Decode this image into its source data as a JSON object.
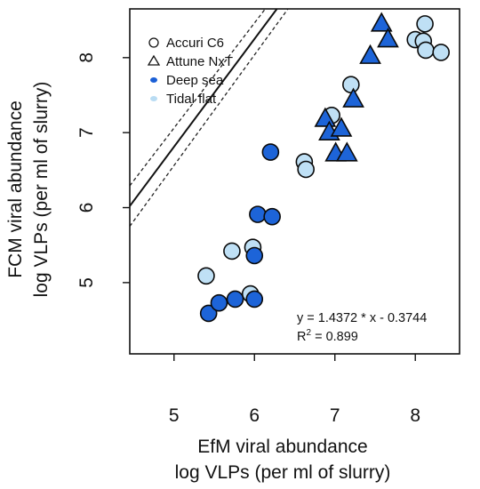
{
  "chart_data": {
    "type": "scatter",
    "xlabel_lines": [
      "EfM viral abundance",
      "log VLPs (per ml of slurry)"
    ],
    "ylabel_lines": [
      "FCM viral abundance",
      "log VLPs (per ml of slurry)"
    ],
    "xlim": [
      4.45,
      8.55
    ],
    "ylim": [
      4.05,
      8.65
    ],
    "xticks": [
      5,
      6,
      7,
      8
    ],
    "yticks": [
      5,
      6,
      7,
      8
    ],
    "grid": false,
    "legend": {
      "placement": "top-left",
      "items": [
        {
          "label": "Accuri C6",
          "symbol": "circle-open"
        },
        {
          "label": "Attune NxT",
          "symbol": "triangle-open"
        },
        {
          "label": "Deep sea",
          "symbol": "dot",
          "color": "#1a5fd6"
        },
        {
          "label": "Tidal flat",
          "symbol": "dot",
          "color": "#b9dcf3"
        }
      ]
    },
    "regression": {
      "slope": 1.4372,
      "intercept": -0.3744,
      "equation_text": "y = 1.4372 * x - 0.3744",
      "r2_prefix": "R",
      "r2_sup": "2",
      "r2_value": " = 0.899"
    },
    "confidence_band": {
      "upper": [
        [
          5.3,
          7.3
        ],
        [
          4.2,
          8.55
        ]
      ],
      "lower": [
        [
          5.3,
          7.78
        ],
        [
          4.2,
          8.55
        ]
      ]
    },
    "colors": {
      "deep_sea": "#1d64d8",
      "tidal_flat": "#bfe0f5",
      "stroke": "#0a0a0a"
    },
    "series": [
      {
        "name": "Accuri C6 – Tidal flat",
        "marker": "circle",
        "group": "tidal_flat",
        "points": [
          [
            5.4,
            5.09
          ],
          [
            5.72,
            5.42
          ],
          [
            5.98,
            5.47
          ],
          [
            5.95,
            4.85
          ],
          [
            6.62,
            6.61
          ],
          [
            6.64,
            6.51
          ],
          [
            6.96,
            7.23
          ],
          [
            7.2,
            7.64
          ],
          [
            8.0,
            8.24
          ],
          [
            8.1,
            8.22
          ],
          [
            8.12,
            8.45
          ],
          [
            8.13,
            8.1
          ],
          [
            8.32,
            8.07
          ]
        ]
      },
      {
        "name": "Accuri C6 – Deep sea",
        "marker": "circle",
        "group": "deep_sea",
        "points": [
          [
            5.43,
            4.59
          ],
          [
            5.56,
            4.73
          ],
          [
            5.76,
            4.78
          ],
          [
            6.0,
            4.78
          ],
          [
            6.0,
            5.36
          ],
          [
            6.04,
            5.91
          ],
          [
            6.22,
            5.88
          ],
          [
            6.2,
            6.74
          ]
        ]
      },
      {
        "name": "Attune NxT – Deep sea",
        "marker": "triangle",
        "group": "deep_sea",
        "points": [
          [
            6.88,
            7.18
          ],
          [
            6.93,
            7.0
          ],
          [
            7.08,
            7.05
          ],
          [
            7.01,
            6.72
          ],
          [
            7.15,
            6.72
          ],
          [
            7.23,
            7.44
          ],
          [
            7.44,
            8.02
          ],
          [
            7.58,
            8.45
          ],
          [
            7.66,
            8.24
          ]
        ]
      }
    ]
  }
}
